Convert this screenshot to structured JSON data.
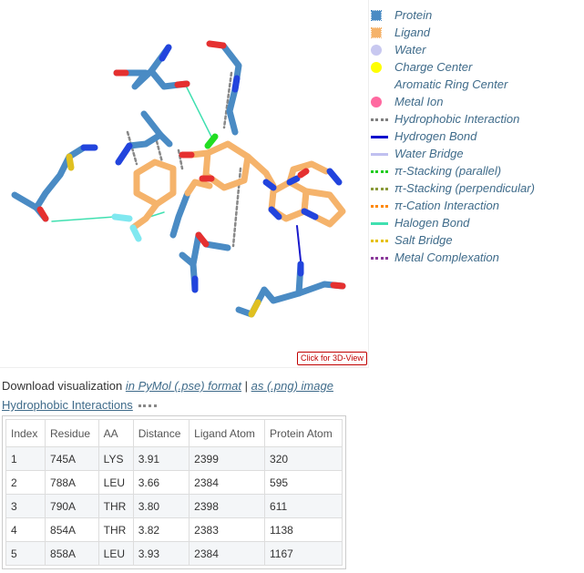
{
  "viewer": {
    "button_label": "Click for 3D-View"
  },
  "legend": [
    {
      "label": "Protein",
      "type": "square",
      "color": "#4a8bc4"
    },
    {
      "label": "Ligand",
      "type": "square",
      "color": "#f5b36b"
    },
    {
      "label": "Water",
      "type": "circle",
      "color": "#c8c8f0"
    },
    {
      "label": "Charge Center",
      "type": "circle",
      "color": "#ffff00"
    },
    {
      "label": "Aromatic Ring Center",
      "type": "circle",
      "color": "#ffffff"
    },
    {
      "label": "Metal Ion",
      "type": "circle",
      "color": "#ff69a0"
    },
    {
      "label": "Hydrophobic Interaction",
      "type": "line",
      "color": "#808080",
      "style": "dotted"
    },
    {
      "label": "Hydrogen Bond",
      "type": "line",
      "color": "#0000cc",
      "style": "solid"
    },
    {
      "label": "Water Bridge",
      "type": "line",
      "color": "#c0c0f0",
      "style": "solid"
    },
    {
      "label": "π-Stacking (parallel)",
      "type": "line",
      "color": "#22cc22",
      "style": "dotted"
    },
    {
      "label": "π-Stacking (perpendicular)",
      "type": "line",
      "color": "#8a9a3a",
      "style": "dotted"
    },
    {
      "label": "π-Cation Interaction",
      "type": "line",
      "color": "#ff8800",
      "style": "dotted"
    },
    {
      "label": "Halogen Bond",
      "type": "line",
      "color": "#40e0b0",
      "style": "solid"
    },
    {
      "label": "Salt Bridge",
      "type": "line",
      "color": "#e6c000",
      "style": "dotted"
    },
    {
      "label": "Metal Complexation",
      "type": "line",
      "color": "#8a3a9a",
      "style": "dotted"
    }
  ],
  "download": {
    "prefix": "Download visualization ",
    "pymol_link": "in PyMol (.pse) format",
    "separator": " | ",
    "png_link": "as (.png) image"
  },
  "hydrophobic": {
    "title": "Hydrophobic Interactions",
    "headers": [
      "Index",
      "Residue",
      "AA",
      "Distance",
      "Ligand Atom",
      "Protein Atom"
    ],
    "rows": [
      [
        "1",
        "745A",
        "LYS",
        "3.91",
        "2399",
        "320"
      ],
      [
        "2",
        "788A",
        "LEU",
        "3.66",
        "2384",
        "595"
      ],
      [
        "3",
        "790A",
        "THR",
        "3.80",
        "2398",
        "611"
      ],
      [
        "4",
        "854A",
        "THR",
        "3.82",
        "2383",
        "1138"
      ],
      [
        "5",
        "858A",
        "LEU",
        "3.93",
        "2384",
        "1167"
      ]
    ]
  }
}
